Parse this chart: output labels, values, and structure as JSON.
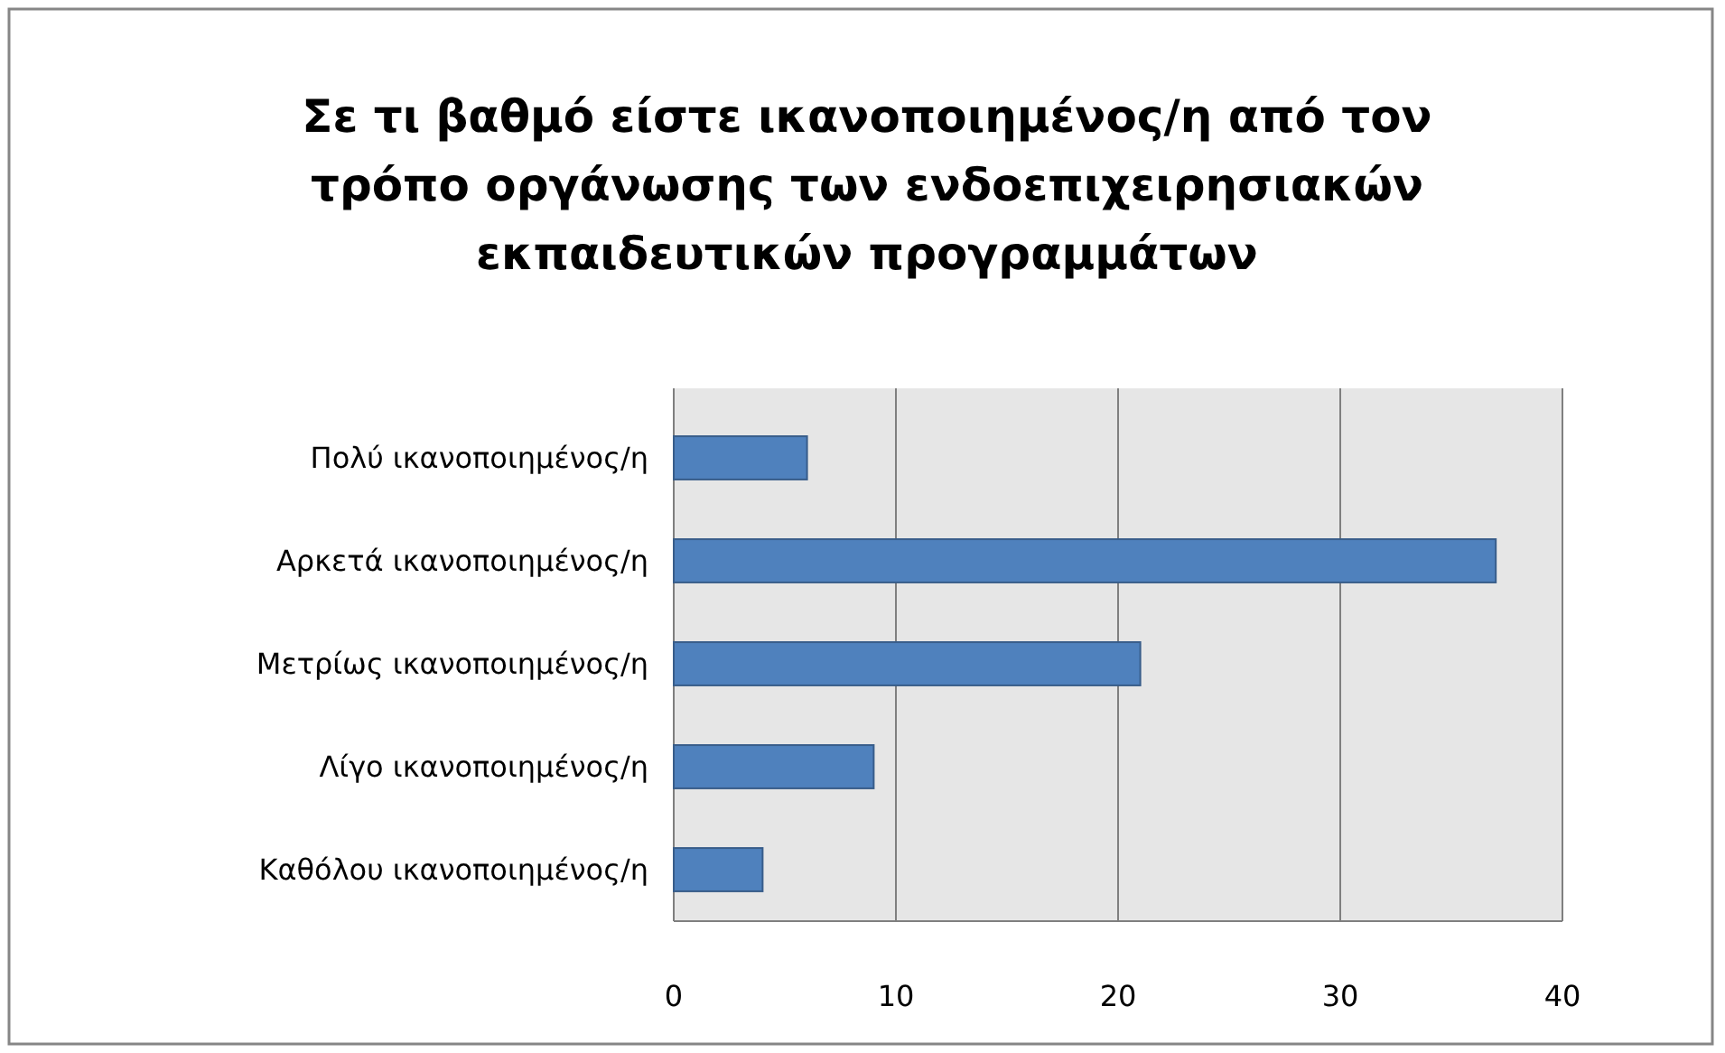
{
  "chart_data": {
    "type": "bar",
    "orientation": "horizontal",
    "title": "Σε τι βαθμό είστε ικανοποιημένος/η από τον τρόπο οργάνωσης των ενδοεπιχειρησιακών εκπαιδευτικών προγραμμάτων",
    "categories": [
      "Πολύ ικανοποιημένος/η",
      "Αρκετά ικανοποιημένος/η",
      "Μετρίως ικανοποιημένος/η",
      "Λίγο ικανοποιημένος/η",
      "Καθόλου ικανοποιημένος/η"
    ],
    "values": [
      6,
      37,
      21,
      9,
      4
    ],
    "color": "#4f81bd",
    "xlim": [
      0,
      40
    ],
    "xticks": [
      0,
      10,
      20,
      30,
      40
    ],
    "grid": "x"
  }
}
